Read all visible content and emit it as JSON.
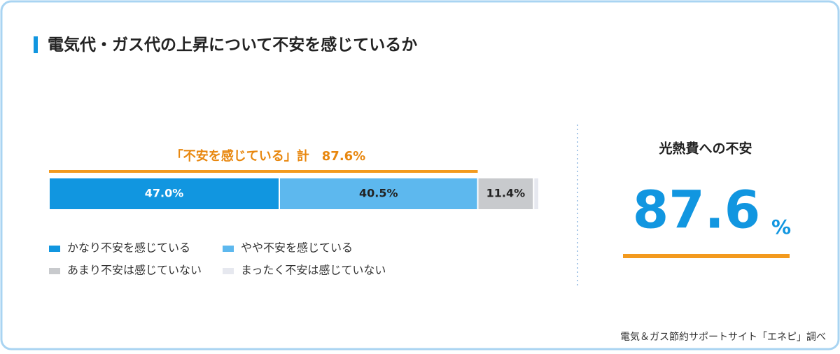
{
  "title": "電気代・ガス代の上昇について不安を感じているか",
  "chart_data": {
    "type": "stacked_bar",
    "xlim": [
      0,
      100
    ],
    "annotation": "「不安を感じている」計　87.6%",
    "series": [
      {
        "name": "かなり不安を感じている",
        "color": "#1196e0",
        "values": [
          47.0
        ],
        "value_labels": [
          "47.0%"
        ]
      },
      {
        "name": "やや不安を感じている",
        "color": "#5db8ee",
        "values": [
          40.5
        ],
        "value_labels": [
          "40.5%"
        ]
      },
      {
        "name": "あまり不安は感じていない",
        "color": "#c8cacd",
        "values": [
          11.4
        ],
        "value_labels": [
          "11.4%"
        ]
      },
      {
        "name": "まったく不安は感じていない",
        "color": "#e6e8ef",
        "values": [
          1.1
        ]
      }
    ]
  },
  "highlight": {
    "label": "光熱費への不安",
    "value": 87.6,
    "unit": "%"
  },
  "source": "電気＆ガス節約サポートサイト「エネピ」調べ"
}
